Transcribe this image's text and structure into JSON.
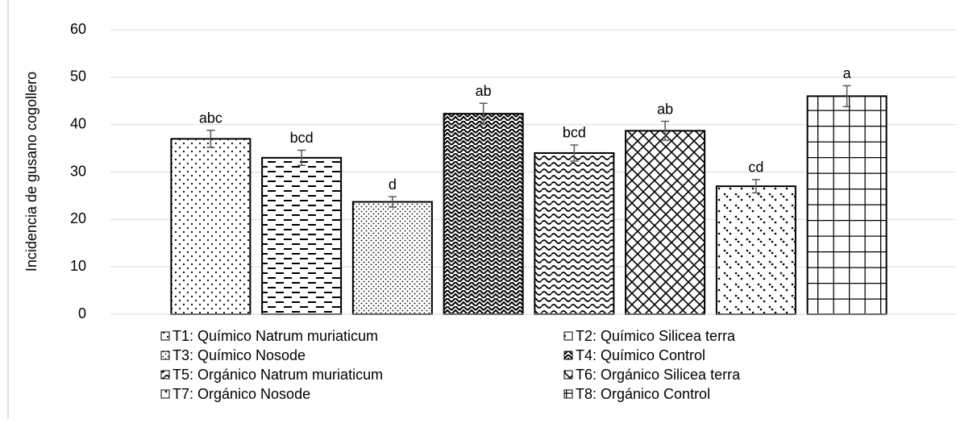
{
  "chart_data": {
    "type": "bar",
    "y_axis_label": "Incidencia de gusano cogollero",
    "categories": [
      "T1: Químico Natrum muriaticum",
      "T2: Químico Silicea terra",
      "T3: Químico Nosode",
      "T4: Químico Control",
      "T5: Orgánico Natrum muriaticum",
      "T6: Orgánico Silicea terra",
      "T7: Orgánico Nosode",
      "T8: Orgánico Control"
    ],
    "values": [
      37,
      33,
      23.7,
      42.3,
      34,
      38.7,
      27,
      46
    ],
    "errors": [
      1.8,
      1.6,
      1.1,
      2.2,
      1.7,
      2,
      1.4,
      2.2
    ],
    "significance_labels": [
      "abc",
      "bcd",
      "d",
      "ab",
      "bcd",
      "ab",
      "cd",
      "a"
    ],
    "color": "#000000",
    "ylim": [
      0,
      60
    ],
    "yticks": [
      0,
      10,
      20,
      30,
      40,
      50,
      60
    ],
    "grid": true
  }
}
